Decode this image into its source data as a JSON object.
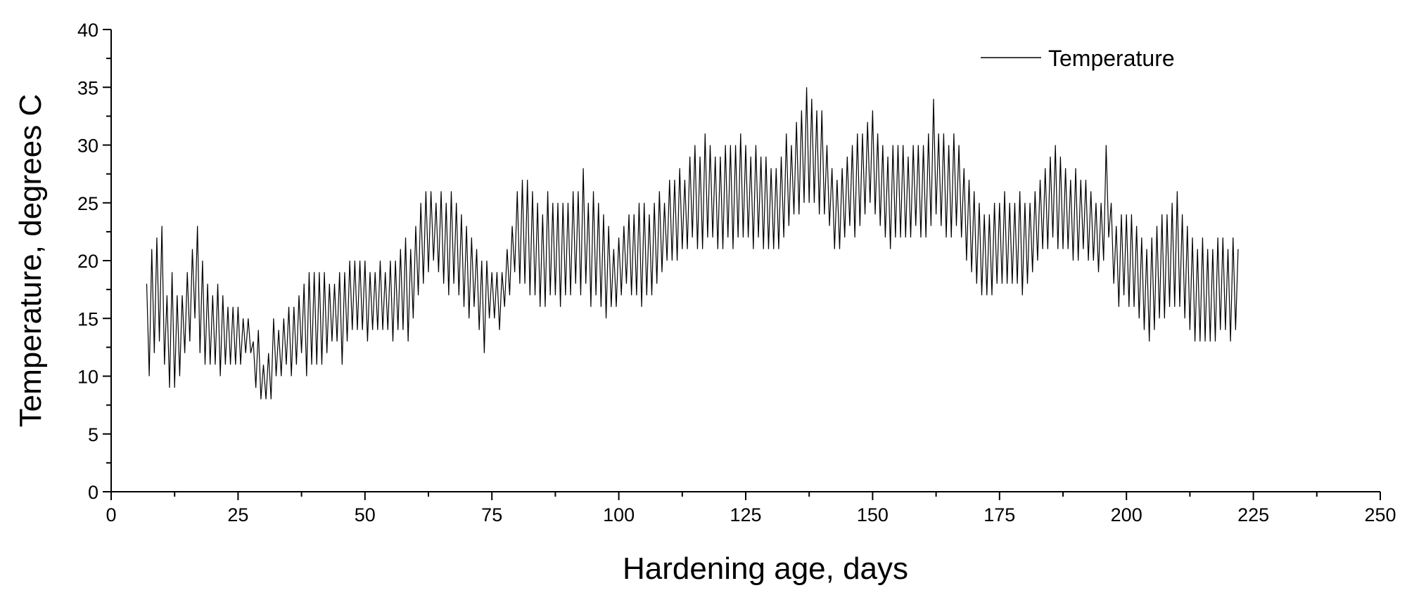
{
  "chart_data": {
    "type": "line",
    "title": "",
    "xlabel": "Hardening age, days",
    "ylabel": "Temperature, degrees C",
    "xlim": [
      0,
      250
    ],
    "ylim": [
      0,
      40
    ],
    "x_ticks": [
      "0",
      "25",
      "50",
      "75",
      "100",
      "125",
      "150",
      "175",
      "200",
      "225",
      "250"
    ],
    "y_ticks": [
      "0",
      "5",
      "10",
      "15",
      "20",
      "25",
      "30",
      "35",
      "40"
    ],
    "grid": false,
    "legend": {
      "position": "top-right",
      "entries": [
        "Temperature"
      ]
    },
    "series": [
      {
        "name": "Temperature",
        "color": "#000000",
        "step": 0.5,
        "x_start": 7,
        "values": [
          18,
          10,
          21,
          12,
          22,
          13,
          23,
          11,
          17,
          9,
          19,
          9,
          17,
          10,
          17,
          12,
          19,
          13,
          21,
          15,
          23,
          12,
          20,
          11,
          18,
          11,
          17,
          11,
          18,
          10,
          17,
          11,
          16,
          11,
          16,
          11,
          16,
          11,
          15,
          12,
          15,
          12,
          13,
          9,
          14,
          8,
          11,
          8,
          12,
          8,
          15,
          10,
          14,
          10,
          15,
          11,
          16,
          10,
          16,
          11,
          17,
          12,
          18,
          10,
          19,
          11,
          19,
          11,
          19,
          11,
          19,
          12,
          18,
          13,
          18,
          13,
          19,
          11,
          19,
          13,
          20,
          14,
          20,
          14,
          20,
          14,
          20,
          13,
          19,
          14,
          19,
          14,
          20,
          14,
          19,
          14,
          20,
          13,
          20,
          14,
          21,
          14,
          22,
          13,
          21,
          15,
          23,
          17,
          25,
          18,
          26,
          19,
          26,
          20,
          25,
          19,
          26,
          18,
          25,
          17,
          26,
          18,
          25,
          17,
          24,
          16,
          23,
          15,
          22,
          16,
          21,
          14,
          20,
          12,
          20,
          15,
          19,
          15,
          19,
          14,
          19,
          16,
          21,
          17,
          23,
          19,
          26,
          18,
          27,
          18,
          27,
          17,
          26,
          17,
          25,
          16,
          24,
          16,
          26,
          17,
          25,
          17,
          25,
          16,
          25,
          17,
          25,
          17,
          26,
          18,
          26,
          17,
          28,
          18,
          25,
          16,
          26,
          17,
          25,
          16,
          24,
          15,
          23,
          16,
          21,
          16,
          22,
          17,
          23,
          18,
          24,
          17,
          24,
          17,
          25,
          16,
          25,
          17,
          24,
          17,
          25,
          18,
          26,
          19,
          25,
          20,
          27,
          20,
          27,
          20,
          28,
          21,
          27,
          21,
          29,
          22,
          30,
          21,
          29,
          21,
          31,
          22,
          30,
          22,
          29,
          21,
          29,
          21,
          30,
          22,
          30,
          21,
          30,
          22,
          31,
          22,
          30,
          22,
          29,
          21,
          30,
          22,
          29,
          21,
          29,
          21,
          28,
          21,
          28,
          21,
          29,
          22,
          31,
          23,
          30,
          24,
          32,
          24,
          33,
          25,
          35,
          25,
          34,
          25,
          33,
          24,
          33,
          24,
          30,
          23,
          28,
          21,
          27,
          21,
          28,
          22,
          29,
          23,
          30,
          22,
          31,
          23,
          31,
          24,
          32,
          25,
          33,
          24,
          31,
          23,
          30,
          22,
          29,
          21,
          30,
          22,
          30,
          22,
          30,
          22,
          29,
          22,
          30,
          23,
          30,
          22,
          30,
          22,
          31,
          23,
          34,
          24,
          31,
          23,
          31,
          22,
          30,
          22,
          31,
          23,
          30,
          22,
          28,
          20,
          27,
          19,
          26,
          18,
          25,
          17,
          24,
          17,
          24,
          17,
          25,
          18,
          25,
          18,
          26,
          18,
          25,
          18,
          25,
          18,
          26,
          17,
          25,
          18,
          25,
          19,
          26,
          20,
          27,
          21,
          28,
          21,
          29,
          22,
          30,
          21,
          29,
          21,
          28,
          21,
          27,
          20,
          28,
          20,
          27,
          21,
          27,
          20,
          26,
          20,
          25,
          19,
          25,
          20,
          30,
          22,
          25,
          18,
          23,
          16,
          24,
          17,
          24,
          16,
          24,
          16,
          23,
          15,
          22,
          14,
          21,
          13,
          22,
          14,
          23,
          15,
          24,
          15,
          24,
          16,
          25,
          16,
          26,
          16,
          24,
          15,
          23,
          14,
          22,
          13,
          21,
          13,
          22,
          13,
          21,
          13,
          21,
          13,
          22,
          14,
          22,
          14,
          21,
          13,
          22,
          14,
          21
        ]
      }
    ]
  }
}
